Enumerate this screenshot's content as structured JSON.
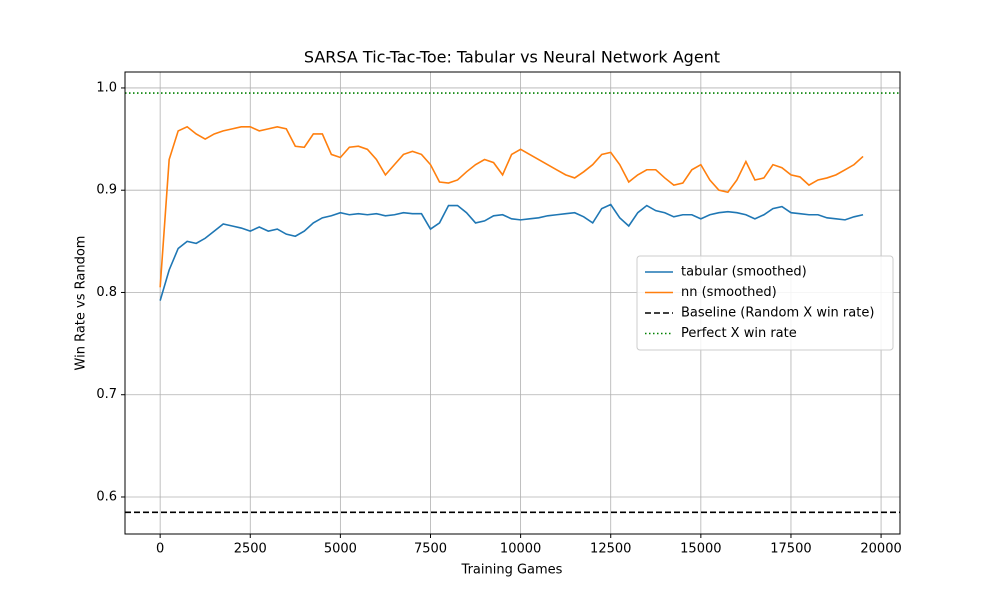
{
  "chart_data": {
    "type": "line",
    "title": "SARSA Tic-Tac-Toe: Tabular vs Neural Network Agent",
    "xlabel": "Training Games",
    "ylabel": "Win Rate vs Random",
    "xlim": [
      -975,
      20525
    ],
    "xticks": [
      0,
      2500,
      5000,
      7500,
      10000,
      12500,
      15000,
      17500,
      20000
    ],
    "ylim": [
      0.5638,
      1.0156
    ],
    "yticks": [
      0.6,
      0.7,
      0.8,
      0.9,
      {
        "value": 1,
        "label": "1.0"
      }
    ],
    "grid": true,
    "legend": "center right",
    "x": [
      0,
      250,
      500,
      750,
      1000,
      1250,
      1500,
      1750,
      2000,
      2250,
      2500,
      2750,
      3000,
      3250,
      3500,
      3750,
      4000,
      4250,
      4500,
      4750,
      5000,
      5250,
      5500,
      5750,
      6000,
      6250,
      6500,
      6750,
      7000,
      7250,
      7500,
      7750,
      8000,
      8250,
      8500,
      8750,
      9000,
      9250,
      9500,
      9750,
      10000,
      10250,
      10500,
      10750,
      11000,
      11250,
      11500,
      11750,
      12000,
      12250,
      12500,
      12750,
      13000,
      13250,
      13500,
      13750,
      14000,
      14250,
      14500,
      14750,
      15000,
      15250,
      15500,
      15750,
      16000,
      16250,
      16500,
      16750,
      17000,
      17250,
      17500,
      17750,
      18000,
      18250,
      18500,
      18750,
      19000,
      19250,
      19500
    ],
    "series": [
      {
        "name": "tabular (smoothed)",
        "color": "#1f77b4",
        "values": [
          0.792,
          0.822,
          0.843,
          0.85,
          0.848,
          0.853,
          0.86,
          0.867,
          0.865,
          0.863,
          0.86,
          0.864,
          0.86,
          0.862,
          0.857,
          0.855,
          0.86,
          0.868,
          0.873,
          0.875,
          0.878,
          0.876,
          0.877,
          0.876,
          0.877,
          0.875,
          0.876,
          0.878,
          0.877,
          0.877,
          0.862,
          0.868,
          0.885,
          0.885,
          0.878,
          0.868,
          0.87,
          0.875,
          0.876,
          0.872,
          0.871,
          0.872,
          0.873,
          0.875,
          0.876,
          0.877,
          0.878,
          0.874,
          0.868,
          0.882,
          0.886,
          0.873,
          0.865,
          0.878,
          0.885,
          0.88,
          0.878,
          0.874,
          0.876,
          0.876,
          0.872,
          0.876,
          0.878,
          0.879,
          0.878,
          0.876,
          0.872,
          0.876,
          0.882,
          0.884,
          0.878,
          0.877,
          0.876,
          0.876,
          0.873,
          0.872,
          0.871,
          0.874,
          0.876
        ]
      },
      {
        "name": "nn (smoothed)",
        "color": "#ff7f0e",
        "values": [
          0.805,
          0.93,
          0.958,
          0.962,
          0.955,
          0.95,
          0.955,
          0.958,
          0.96,
          0.962,
          0.962,
          0.958,
          0.96,
          0.962,
          0.96,
          0.943,
          0.942,
          0.955,
          0.955,
          0.935,
          0.932,
          0.942,
          0.943,
          0.94,
          0.93,
          0.915,
          0.925,
          0.935,
          0.938,
          0.935,
          0.925,
          0.908,
          0.907,
          0.91,
          0.918,
          0.925,
          0.93,
          0.927,
          0.915,
          0.935,
          0.94,
          0.935,
          0.93,
          0.925,
          0.92,
          0.915,
          0.912,
          0.918,
          0.925,
          0.935,
          0.937,
          0.925,
          0.908,
          0.915,
          0.92,
          0.92,
          0.912,
          0.905,
          0.907,
          0.92,
          0.925,
          0.91,
          0.9,
          0.898,
          0.91,
          0.928,
          0.91,
          0.912,
          0.925,
          0.922,
          0.915,
          0.913,
          0.905,
          0.91,
          0.912,
          0.915,
          0.92,
          0.925,
          0.933
        ]
      }
    ],
    "hlines": [
      {
        "name": "Baseline (Random X win rate)",
        "value": 0.585,
        "color": "#000000",
        "style": "dashed"
      },
      {
        "name": "Perfect X win rate",
        "value": 0.995,
        "color": "#008000",
        "style": "dotted"
      }
    ]
  }
}
